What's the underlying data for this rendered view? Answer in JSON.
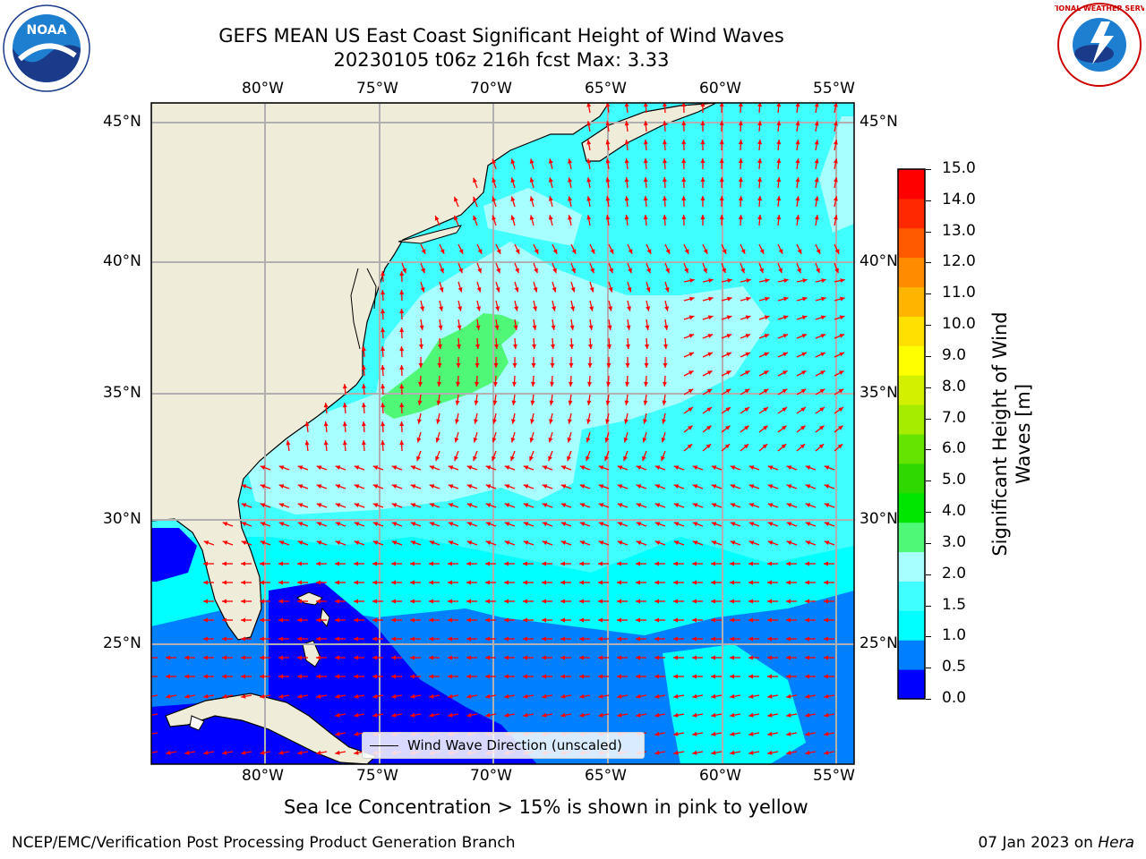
{
  "title": {
    "line1": "GEFS MEAN US East Coast Significant Height of Wind Waves",
    "line2": "20230105 t06z 216h fcst   Max: 3.33"
  },
  "logos": {
    "left": {
      "name": "NOAA",
      "text": "NOAA"
    },
    "right": {
      "name": "National Weather Service",
      "text": "NATIONAL WEATHER SERVICE"
    }
  },
  "axes": {
    "lon_labels": [
      "80°W",
      "75°W",
      "70°W",
      "65°W",
      "60°W",
      "55°W"
    ],
    "lat_labels": [
      "45°N",
      "40°N",
      "35°N",
      "30°N",
      "25°N"
    ]
  },
  "colorbar": {
    "label": "Significant Height of Wind Waves [m]",
    "label_line1": "Significant Height of Wind",
    "label_line2": "Waves [m]",
    "ticks": [
      "15.0",
      "14.0",
      "13.0",
      "12.0",
      "11.0",
      "10.0",
      "9.0",
      "8.0",
      "7.0",
      "6.0",
      "5.0",
      "4.0",
      "3.0",
      "2.0",
      "1.5",
      "1.0",
      "0.5",
      "0.0"
    ],
    "colors_bottom_to_top": [
      "#0000ff",
      "#0080ff",
      "#00ffff",
      "#40ffff",
      "#a8ffff",
      "#50f878",
      "#00e600",
      "#2ed800",
      "#64e400",
      "#a6ec00",
      "#d2f000",
      "#ffff00",
      "#ffe000",
      "#ffb400",
      "#ff8c00",
      "#ff5a00",
      "#ff2800",
      "#ff0000"
    ]
  },
  "legend": {
    "label": "Wind Wave Direction (unscaled)"
  },
  "note": "Sea Ice Concentration > 15% is shown in pink to yellow",
  "footer": {
    "left": "NCEP/EMC/Verification Post Processing Product Generation Branch",
    "right_date": "07 Jan 2023 on",
    "right_host": "Hera"
  },
  "colors": {
    "land": "#efedda",
    "arrow": "#ff0000",
    "grid": "#b0b0b0",
    "wave_0_05": "#0000ff",
    "wave_05_1": "#0080ff",
    "wave_1_15": "#00ffff",
    "wave_15_2": "#40ffff",
    "wave_2_3": "#a8ffff",
    "wave_3_4": "#50f878"
  }
}
